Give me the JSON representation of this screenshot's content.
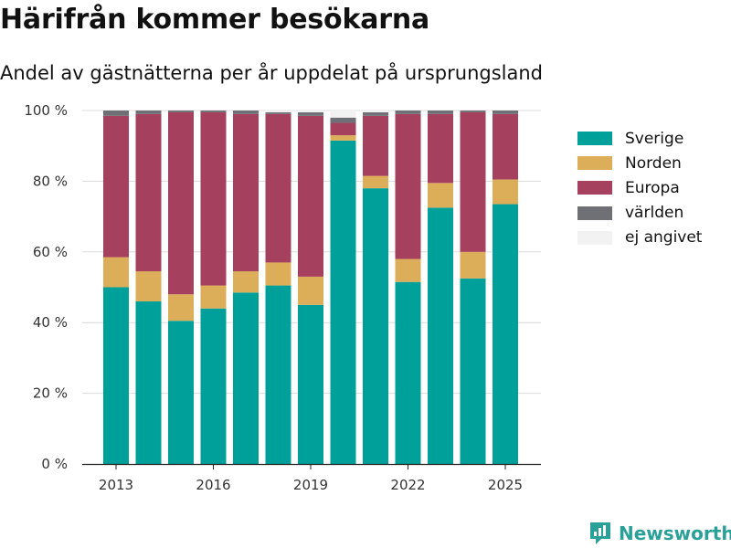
{
  "chart_data": {
    "type": "bar",
    "stacked": true,
    "title": "Härifrån kommer besökarna",
    "subtitle": "Andel av gästnätterna per år uppdelat på ursprungsland",
    "categories": [
      "2013",
      "2014",
      "2015",
      "2016",
      "2017",
      "2018",
      "2019",
      "2020",
      "2021",
      "2022",
      "2023",
      "2024",
      "2025"
    ],
    "x_tick_labels": [
      "2013",
      "2016",
      "2019",
      "2022",
      "2025"
    ],
    "y_tick_labels": [
      "0 %",
      "20 %",
      "40 %",
      "60 %",
      "80 %",
      "100 %"
    ],
    "ylim": [
      0,
      100
    ],
    "grid": true,
    "legend_position": "right",
    "series": [
      {
        "name": "Sverige",
        "color": "#00a09a",
        "values": [
          50,
          46,
          40.5,
          44,
          48.5,
          50.5,
          45,
          91.5,
          78,
          51.5,
          72.5,
          52.5,
          73.5
        ]
      },
      {
        "name": "Norden",
        "color": "#dcae5a",
        "values": [
          8.5,
          8.5,
          7.5,
          6.5,
          6,
          6.5,
          8,
          1.5,
          3.5,
          6.5,
          7,
          7.5,
          7
        ]
      },
      {
        "name": "Europa",
        "color": "#a5405f",
        "values": [
          40,
          44.5,
          51.5,
          49,
          44.5,
          42,
          45.5,
          3.5,
          17,
          41,
          19.5,
          39.5,
          18.5
        ]
      },
      {
        "name": "världen",
        "color": "#6e7075",
        "values": [
          1.5,
          1,
          0.5,
          0.5,
          1,
          0.5,
          1,
          1.5,
          1,
          1,
          1,
          0.5,
          1
        ]
      },
      {
        "name": "ej angivet",
        "color": "#f2f2f2",
        "values": [
          0,
          0,
          0,
          0,
          0,
          0.5,
          0.5,
          2,
          0.5,
          0,
          0,
          0,
          0
        ]
      }
    ]
  },
  "brand": {
    "name": "Newsworthy",
    "color": "#2aa198",
    "icon": "newsworthy-logo-icon"
  }
}
